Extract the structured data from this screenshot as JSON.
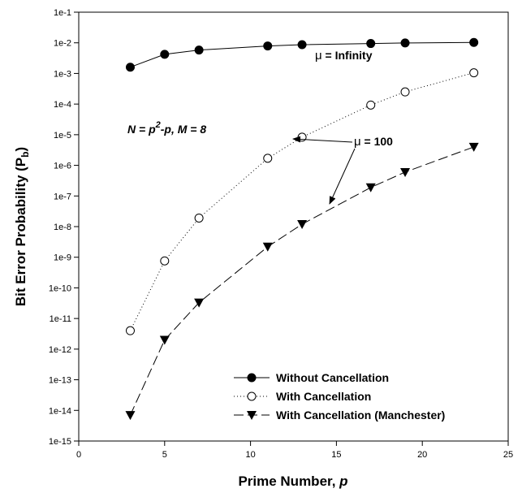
{
  "chart_data": {
    "type": "line",
    "title": "",
    "xlabel": "Prime Number, ",
    "xlabel_italic": "p",
    "ylabel": "Bit Error Probability (P",
    "ylabel_sub": "b",
    "ylabel_close": ")",
    "xlim": [
      0,
      25
    ],
    "x_ticks": [
      0,
      5,
      10,
      15,
      20,
      25
    ],
    "x_tick_labels": [
      "0",
      "5",
      "10",
      "15",
      "20",
      "25"
    ],
    "y_scale": "log",
    "ylim_exp": [
      -15,
      -1
    ],
    "y_tick_labels": [
      "1e-1",
      "1e-2",
      "1e-3",
      "1e-4",
      "1e-5",
      "1e-6",
      "1e-7",
      "1e-8",
      "1e-9",
      "1e-10",
      "1e-11",
      "1e-12",
      "1e-13",
      "1e-14",
      "1e-15"
    ],
    "grid": false,
    "legend_position": "bottom-right",
    "series": [
      {
        "name": "Without Cancellation",
        "marker": "filled-circle",
        "line_style": "solid",
        "x": [
          3,
          5,
          7,
          11,
          13,
          17,
          19,
          23
        ],
        "y": [
          0.0016,
          0.0042,
          0.0058,
          0.0079,
          0.0087,
          0.0095,
          0.0099,
          0.0103
        ]
      },
      {
        "name": "With Cancellation",
        "marker": "open-circle",
        "line_style": "dotted",
        "x": [
          3,
          5,
          7,
          11,
          13,
          17,
          19,
          23
        ],
        "y": [
          4e-12,
          7.6e-10,
          1.9e-08,
          1.7e-06,
          8.3e-06,
          9.3e-05,
          0.00025,
          0.00105
        ]
      },
      {
        "name": "With Cancellation (Manchester)",
        "marker": "filled-triangle-down",
        "line_style": "dashed",
        "x": [
          3,
          5,
          7,
          11,
          13,
          17,
          19,
          23
        ],
        "y": [
          7e-15,
          2e-12,
          3.3e-11,
          2.2e-09,
          1.2e-08,
          1.9e-07,
          6e-07,
          4e-06
        ]
      }
    ],
    "annotations": {
      "mu_infinity": {
        "mu": "μ",
        "rest": " = Infinity"
      },
      "mu_100": {
        "mu": "μ",
        "rest": " = 100"
      },
      "formula": {
        "part1": "N = p",
        "sup": "2",
        "part2": "-p, M = 8"
      }
    }
  }
}
